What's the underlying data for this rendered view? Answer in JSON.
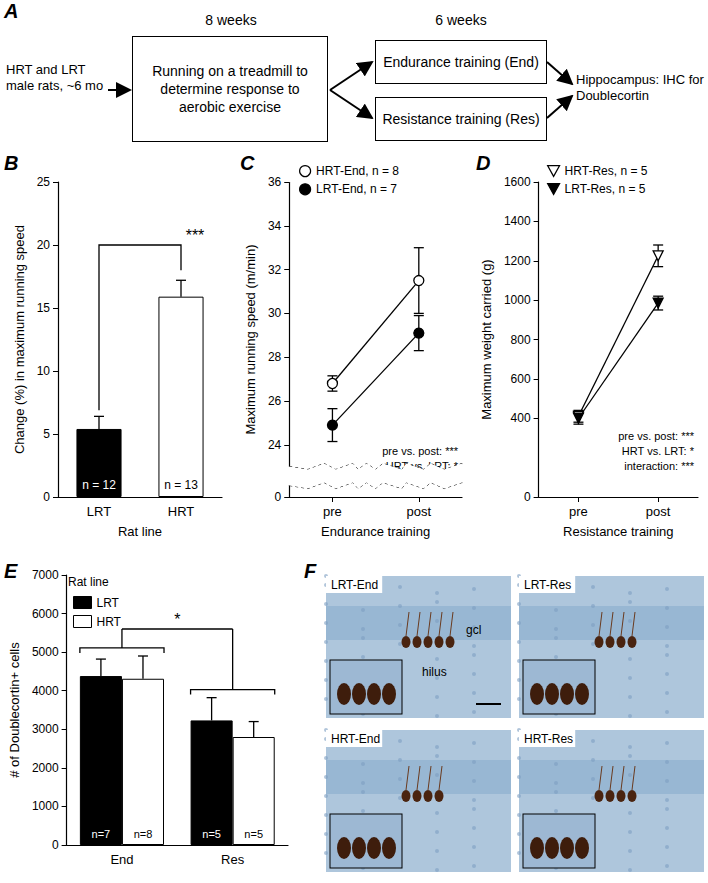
{
  "diagram": {
    "title": "A",
    "start": "HRT and LRT male rats, ~6 mo",
    "phase1": {
      "duration": "8 weeks",
      "box": "Running on a treadmill to determine response to aerobic exercise"
    },
    "phase2": {
      "duration": "6 weeks",
      "boxes": [
        "Endurance training (End)",
        "Resistance training (Res)"
      ]
    },
    "end": "Hippocampus: IHC for Doublecortin"
  },
  "chart_data": [
    {
      "title": "B",
      "type": "bar",
      "categories": [
        "LRT",
        "HRT"
      ],
      "x_label": "Rat line",
      "y_label": "Change (%) in maximum running speed",
      "values": [
        5.4,
        15.9
      ],
      "errors": [
        1.0,
        1.3
      ],
      "colors": [
        "#000000",
        "#ffffff"
      ],
      "n_labels": [
        "n = 12",
        "n = 13"
      ],
      "significance": "***",
      "ylim": [
        0,
        25
      ],
      "yticks": [
        0,
        5,
        10,
        15,
        20,
        25
      ]
    },
    {
      "title": "C",
      "type": "line",
      "categories": [
        "pre",
        "post"
      ],
      "x_label": "Endurance training",
      "y_label": "Maximum running speed (m/min)",
      "series": [
        {
          "name": "HRT-End, n = 8",
          "color": "#ffffff",
          "marker": "circle",
          "values": [
            26.8,
            31.5
          ],
          "errors": [
            0.35,
            1.5
          ]
        },
        {
          "name": "LRT-End, n = 7",
          "color": "#000000",
          "marker": "circle",
          "values": [
            24.9,
            29.1
          ],
          "errors": [
            0.75,
            0.8
          ]
        }
      ],
      "annotations": [
        "pre vs. post: ***",
        "HRT vs. LRT: *"
      ],
      "legend": "top-left",
      "ylim": [
        0,
        36
      ],
      "yticks": [
        0,
        24,
        26,
        28,
        30,
        32,
        34,
        36
      ]
    },
    {
      "title": "D",
      "type": "line",
      "categories": [
        "pre",
        "post"
      ],
      "x_label": "Resistance training",
      "y_label": "Maximum weight carried (g)",
      "series": [
        {
          "name": "HRT-Res, n = 5",
          "color": "#ffffff",
          "marker": "triangle-down",
          "values": [
            410,
            1225
          ],
          "errors": [
            30,
            55
          ]
        },
        {
          "name": "LRT-Res, n = 5",
          "color": "#000000",
          "marker": "triangle-down",
          "values": [
            400,
            985
          ],
          "errors": [
            30,
            35
          ]
        }
      ],
      "annotations": [
        "pre vs. post: ***",
        "HRT vs. LRT: *",
        "interaction: ***"
      ],
      "legend": "top-left",
      "ylim": [
        0,
        1600
      ],
      "yticks": [
        0,
        400,
        600,
        800,
        1000,
        1200,
        1400,
        1600
      ]
    },
    {
      "title": "E",
      "type": "bar",
      "categories": [
        "End",
        "Res"
      ],
      "y_label": "# of Doublecortin+ cells",
      "legend_title": "Rat line",
      "series": [
        {
          "name": "LRT",
          "color": "#000000",
          "values": [
            4380,
            3230
          ],
          "errors": [
            440,
            590
          ],
          "n_labels": [
            "n=7",
            "n=5"
          ]
        },
        {
          "name": "HRT",
          "color": "#ffffff",
          "values": [
            4310,
            2800
          ],
          "errors": [
            590,
            400
          ],
          "n_labels": [
            "n=8",
            "n=5"
          ]
        }
      ],
      "significance": "*",
      "legend": "top-left",
      "ylim": [
        0,
        7000
      ],
      "yticks": [
        0,
        1000,
        2000,
        3000,
        4000,
        5000,
        6000,
        7000
      ]
    }
  ],
  "images": {
    "title": "F",
    "panels": [
      "LRT-End",
      "LRT-Res",
      "HRT-End",
      "HRT-Res"
    ],
    "regions": [
      "gcl",
      "hilus"
    ]
  }
}
